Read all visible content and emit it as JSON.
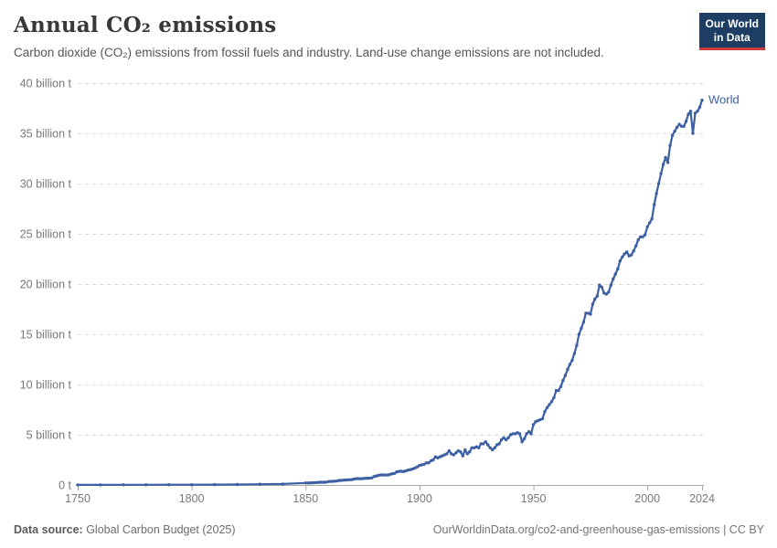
{
  "header": {
    "title": "Annual CO₂ emissions",
    "subtitle": "Carbon dioxide (CO₂) emissions from fossil fuels and industry. Land-use change emissions are not included.",
    "logo": {
      "line1": "Our World",
      "line2": "in Data"
    }
  },
  "footer": {
    "source_label": "Data source:",
    "source_value": " Global Carbon Budget (2025)",
    "note": "OurWorldinData.org/co2-and-greenhouse-gas-emissions | CC BY"
  },
  "colors": {
    "line": "#3d5fa3",
    "logo-navy": "#1d3d63",
    "logo-red": "#cc3b3b",
    "grid": "#dcdcdc",
    "axis": "#a8a8a8",
    "tick-label": "#787878",
    "title": "#383838",
    "subtitle": "#555555",
    "footer": "#6e6e6e"
  },
  "chart_data": {
    "type": "line",
    "title": "Annual CO₂ emissions",
    "unit": "billion t",
    "xlabel": "",
    "ylabel": "",
    "xlim": [
      1750,
      2024
    ],
    "ylim": [
      0,
      40
    ],
    "grid": "horizontal-dashed",
    "legend_position": "end-of-line-label",
    "yticks": [
      {
        "value": 0,
        "label": "0 t"
      },
      {
        "value": 5,
        "label": "5 billion t"
      },
      {
        "value": 10,
        "label": "10 billion t"
      },
      {
        "value": 15,
        "label": "15 billion t"
      },
      {
        "value": 20,
        "label": "20 billion t"
      },
      {
        "value": 25,
        "label": "25 billion t"
      },
      {
        "value": 30,
        "label": "30 billion t"
      },
      {
        "value": 35,
        "label": "35 billion t"
      },
      {
        "value": 40,
        "label": "40 billion t"
      }
    ],
    "xticks": [
      {
        "value": 1750,
        "label": "1750"
      },
      {
        "value": 1800,
        "label": "1800"
      },
      {
        "value": 1850,
        "label": "1850"
      },
      {
        "value": 1900,
        "label": "1900"
      },
      {
        "value": 1950,
        "label": "1950"
      },
      {
        "value": 2000,
        "label": "2000"
      },
      {
        "value": 2024,
        "label": "2024"
      }
    ],
    "series": [
      {
        "name": "World",
        "color": "#3d5fa3",
        "points": [
          [
            1750,
            0.01
          ],
          [
            1760,
            0.01
          ],
          [
            1770,
            0.02
          ],
          [
            1780,
            0.02
          ],
          [
            1790,
            0.03
          ],
          [
            1800,
            0.03
          ],
          [
            1810,
            0.04
          ],
          [
            1820,
            0.05
          ],
          [
            1830,
            0.07
          ],
          [
            1840,
            0.1
          ],
          [
            1850,
            0.2
          ],
          [
            1851,
            0.2
          ],
          [
            1852,
            0.21
          ],
          [
            1853,
            0.22
          ],
          [
            1854,
            0.24
          ],
          [
            1855,
            0.25
          ],
          [
            1856,
            0.26
          ],
          [
            1857,
            0.27
          ],
          [
            1858,
            0.27
          ],
          [
            1859,
            0.28
          ],
          [
            1860,
            0.34
          ],
          [
            1861,
            0.35
          ],
          [
            1862,
            0.36
          ],
          [
            1863,
            0.38
          ],
          [
            1864,
            0.41
          ],
          [
            1865,
            0.45
          ],
          [
            1866,
            0.46
          ],
          [
            1867,
            0.49
          ],
          [
            1868,
            0.5
          ],
          [
            1869,
            0.52
          ],
          [
            1870,
            0.53
          ],
          [
            1871,
            0.57
          ],
          [
            1872,
            0.62
          ],
          [
            1873,
            0.65
          ],
          [
            1874,
            0.62
          ],
          [
            1875,
            0.64
          ],
          [
            1876,
            0.66
          ],
          [
            1877,
            0.67
          ],
          [
            1878,
            0.67
          ],
          [
            1879,
            0.7
          ],
          [
            1880,
            0.84
          ],
          [
            1881,
            0.89
          ],
          [
            1882,
            0.95
          ],
          [
            1883,
            1.0
          ],
          [
            1884,
            1.0
          ],
          [
            1885,
            0.99
          ],
          [
            1886,
            0.99
          ],
          [
            1887,
            1.05
          ],
          [
            1888,
            1.12
          ],
          [
            1889,
            1.15
          ],
          [
            1890,
            1.3
          ],
          [
            1891,
            1.35
          ],
          [
            1892,
            1.36
          ],
          [
            1893,
            1.34
          ],
          [
            1894,
            1.4
          ],
          [
            1895,
            1.48
          ],
          [
            1896,
            1.53
          ],
          [
            1897,
            1.6
          ],
          [
            1898,
            1.68
          ],
          [
            1899,
            1.8
          ],
          [
            1900,
            1.95
          ],
          [
            1901,
            2.0
          ],
          [
            1902,
            2.05
          ],
          [
            1903,
            2.2
          ],
          [
            1904,
            2.2
          ],
          [
            1905,
            2.4
          ],
          [
            1906,
            2.5
          ],
          [
            1907,
            2.8
          ],
          [
            1908,
            2.7
          ],
          [
            1909,
            2.8
          ],
          [
            1910,
            2.9
          ],
          [
            1911,
            3.0
          ],
          [
            1912,
            3.1
          ],
          [
            1913,
            3.4
          ],
          [
            1914,
            3.1
          ],
          [
            1915,
            3.0
          ],
          [
            1916,
            3.2
          ],
          [
            1917,
            3.4
          ],
          [
            1918,
            3.3
          ],
          [
            1919,
            2.9
          ],
          [
            1920,
            3.5
          ],
          [
            1921,
            3.1
          ],
          [
            1922,
            3.3
          ],
          [
            1923,
            3.7
          ],
          [
            1924,
            3.7
          ],
          [
            1925,
            3.8
          ],
          [
            1926,
            3.7
          ],
          [
            1927,
            4.1
          ],
          [
            1928,
            4.1
          ],
          [
            1929,
            4.3
          ],
          [
            1930,
            4.0
          ],
          [
            1931,
            3.7
          ],
          [
            1932,
            3.5
          ],
          [
            1933,
            3.7
          ],
          [
            1934,
            4.0
          ],
          [
            1935,
            4.1
          ],
          [
            1936,
            4.5
          ],
          [
            1937,
            4.7
          ],
          [
            1938,
            4.5
          ],
          [
            1939,
            4.7
          ],
          [
            1940,
            5.0
          ],
          [
            1941,
            5.1
          ],
          [
            1942,
            5.1
          ],
          [
            1943,
            5.2
          ],
          [
            1944,
            5.1
          ],
          [
            1945,
            4.3
          ],
          [
            1946,
            4.6
          ],
          [
            1947,
            5.1
          ],
          [
            1948,
            5.3
          ],
          [
            1949,
            5.1
          ],
          [
            1950,
            6.0
          ],
          [
            1951,
            6.3
          ],
          [
            1952,
            6.4
          ],
          [
            1953,
            6.5
          ],
          [
            1954,
            6.6
          ],
          [
            1955,
            7.3
          ],
          [
            1956,
            7.7
          ],
          [
            1957,
            8.0
          ],
          [
            1958,
            8.3
          ],
          [
            1959,
            8.7
          ],
          [
            1960,
            9.4
          ],
          [
            1961,
            9.4
          ],
          [
            1962,
            9.8
          ],
          [
            1963,
            10.4
          ],
          [
            1964,
            10.9
          ],
          [
            1965,
            11.5
          ],
          [
            1966,
            12.0
          ],
          [
            1967,
            12.4
          ],
          [
            1968,
            13.1
          ],
          [
            1969,
            13.9
          ],
          [
            1970,
            15.0
          ],
          [
            1971,
            15.6
          ],
          [
            1972,
            16.2
          ],
          [
            1973,
            17.1
          ],
          [
            1974,
            17.1
          ],
          [
            1975,
            17.0
          ],
          [
            1976,
            18.0
          ],
          [
            1977,
            18.5
          ],
          [
            1978,
            18.8
          ],
          [
            1979,
            19.9
          ],
          [
            1980,
            19.7
          ],
          [
            1981,
            19.1
          ],
          [
            1982,
            19.0
          ],
          [
            1983,
            19.2
          ],
          [
            1984,
            19.9
          ],
          [
            1985,
            20.5
          ],
          [
            1986,
            21.0
          ],
          [
            1987,
            21.5
          ],
          [
            1988,
            22.3
          ],
          [
            1989,
            22.7
          ],
          [
            1990,
            23.0
          ],
          [
            1991,
            23.2
          ],
          [
            1992,
            22.8
          ],
          [
            1993,
            22.9
          ],
          [
            1994,
            23.3
          ],
          [
            1995,
            23.8
          ],
          [
            1996,
            24.4
          ],
          [
            1997,
            24.7
          ],
          [
            1998,
            24.7
          ],
          [
            1999,
            24.9
          ],
          [
            2000,
            25.7
          ],
          [
            2001,
            26.1
          ],
          [
            2002,
            26.5
          ],
          [
            2003,
            27.9
          ],
          [
            2004,
            29.0
          ],
          [
            2005,
            30.0
          ],
          [
            2006,
            31.0
          ],
          [
            2007,
            31.9
          ],
          [
            2008,
            32.6
          ],
          [
            2009,
            32.1
          ],
          [
            2010,
            33.8
          ],
          [
            2011,
            34.8
          ],
          [
            2012,
            35.2
          ],
          [
            2013,
            35.6
          ],
          [
            2014,
            35.9
          ],
          [
            2015,
            35.7
          ],
          [
            2016,
            35.7
          ],
          [
            2017,
            36.2
          ],
          [
            2018,
            36.9
          ],
          [
            2019,
            37.2
          ],
          [
            2020,
            35.0
          ],
          [
            2021,
            37.0
          ],
          [
            2022,
            37.2
          ],
          [
            2023,
            37.6
          ],
          [
            2024,
            38.3
          ]
        ]
      }
    ]
  }
}
